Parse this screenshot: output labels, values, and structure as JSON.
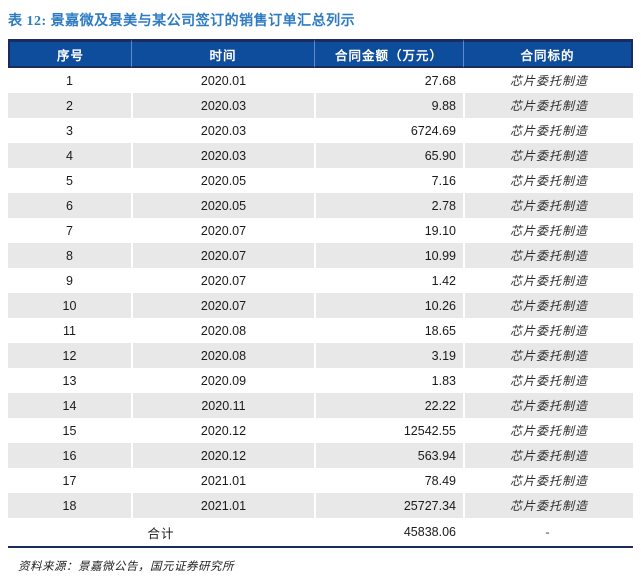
{
  "title": "表 12: 景嘉微及景美与某公司签订的销售订单汇总列示",
  "table": {
    "headers": [
      "序号",
      "时间",
      "合同金额（万元）",
      "合同标的"
    ],
    "rows": [
      [
        "1",
        "2020.01",
        "27.68",
        "芯片委托制造"
      ],
      [
        "2",
        "2020.03",
        "9.88",
        "芯片委托制造"
      ],
      [
        "3",
        "2020.03",
        "6724.69",
        "芯片委托制造"
      ],
      [
        "4",
        "2020.03",
        "65.90",
        "芯片委托制造"
      ],
      [
        "5",
        "2020.05",
        "7.16",
        "芯片委托制造"
      ],
      [
        "6",
        "2020.05",
        "2.78",
        "芯片委托制造"
      ],
      [
        "7",
        "2020.07",
        "19.10",
        "芯片委托制造"
      ],
      [
        "8",
        "2020.07",
        "10.99",
        "芯片委托制造"
      ],
      [
        "9",
        "2020.07",
        "1.42",
        "芯片委托制造"
      ],
      [
        "10",
        "2020.07",
        "10.26",
        "芯片委托制造"
      ],
      [
        "11",
        "2020.08",
        "18.65",
        "芯片委托制造"
      ],
      [
        "12",
        "2020.08",
        "3.19",
        "芯片委托制造"
      ],
      [
        "13",
        "2020.09",
        "1.83",
        "芯片委托制造"
      ],
      [
        "14",
        "2020.11",
        "22.22",
        "芯片委托制造"
      ],
      [
        "15",
        "2020.12",
        "12542.55",
        "芯片委托制造"
      ],
      [
        "16",
        "2020.12",
        "563.94",
        "芯片委托制造"
      ],
      [
        "17",
        "2021.01",
        "78.49",
        "芯片委托制造"
      ],
      [
        "18",
        "2021.01",
        "25727.34",
        "芯片委托制造"
      ]
    ],
    "total": {
      "label": "合计",
      "amount": "45838.06",
      "subject": "-"
    }
  },
  "source_note": "资料来源：景嘉微公告，国元证券研究所",
  "colors": {
    "header_bg": "#0e4c9c",
    "header_border": "#1a2c5f",
    "header_separator": "#6389c6",
    "title_text": "#2e7bc4",
    "alt_row_bg": "#e8e8e8",
    "body_text": "#1a1a1a"
  }
}
